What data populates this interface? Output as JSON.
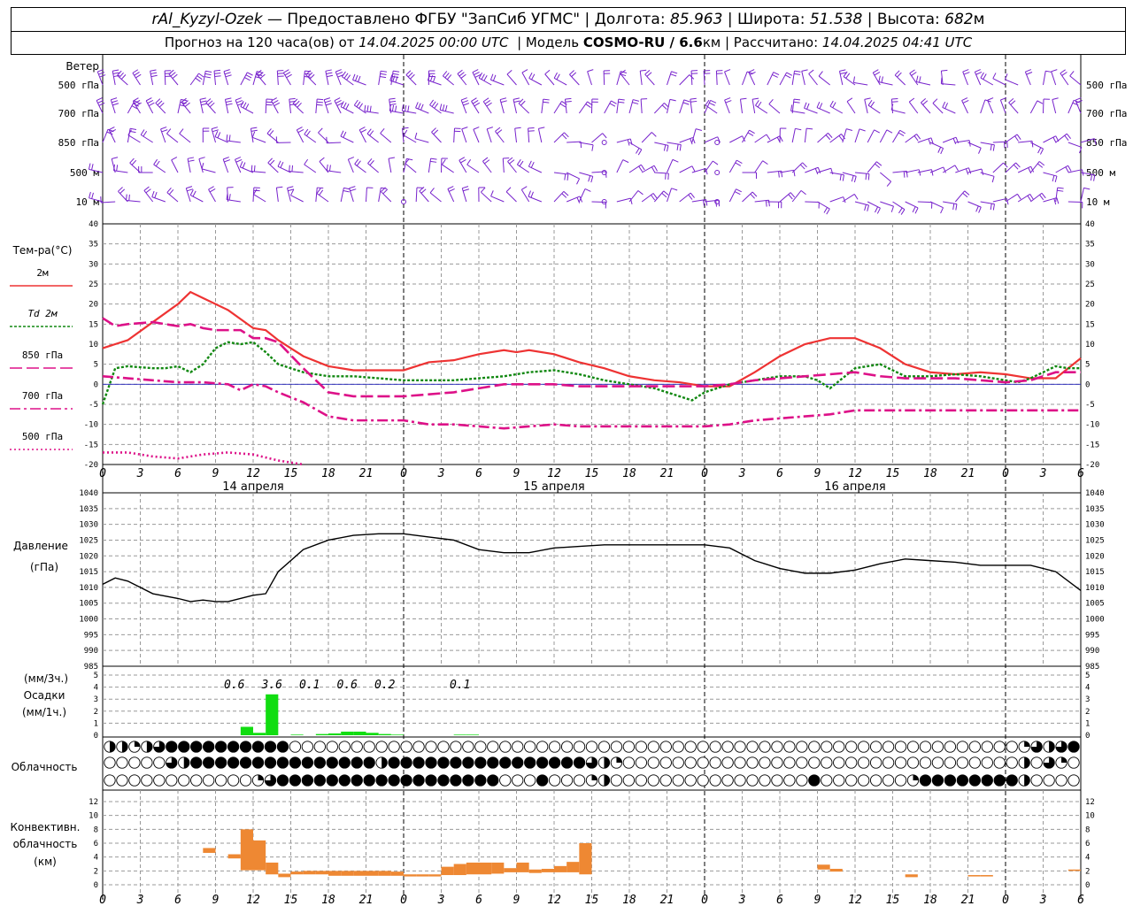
{
  "header": {
    "station": "rAl_Kyzyl-Ozek",
    "provider": "— Предоставлено ФГБУ \"ЗапСиб УГМС\"",
    "lon_label": "| Долгота:",
    "lon": "85.963",
    "lat_label": "| Широта:",
    "lat": "51.538",
    "alt_label": "| Высота:",
    "alt": "682",
    "alt_unit": "м",
    "forecast_label": "Прогноз на 120 часа(ов) от",
    "forecast_start": "14.04.2025 00:00 UTC",
    "model_label": "| Модель",
    "model": "COSMO-RU / 6.6",
    "model_unit": "км",
    "calc_label": "| Рассчитано:",
    "calc_time": "14.04.2025 04:41 UTC"
  },
  "labels": {
    "wind": "Ветер",
    "wind_levels": [
      "500 гПа",
      "700 гПа",
      "850 гПа",
      "500 м",
      "10 м"
    ],
    "temp_title": "Тем-ра(°C)",
    "legend": [
      {
        "label": "2м",
        "color": "#ee3333",
        "dash": ""
      },
      {
        "label": "Td  2м",
        "color": "#118811",
        "dash": "3,2"
      },
      {
        "label": "850 гПа",
        "color": "#dd1188",
        "dash": "14,5"
      },
      {
        "label": "700 гПа",
        "color": "#dd1188",
        "dash": "12,4,3,4"
      },
      {
        "label": "500 гПа",
        "color": "#dd1188",
        "dash": "2,3"
      }
    ],
    "pressure_title": "Давление",
    "pressure_unit": "(гПа)",
    "precip_unit3": "(мм/3ч.)",
    "precip_title": "Осадки",
    "precip_unit1": "(мм/1ч.)",
    "cloud_title": "Облачность",
    "conv_title1": "Конвективн.",
    "conv_title2": "облачность",
    "conv_unit": "(км)",
    "days": [
      "14 апреля",
      "15 апреля",
      "16 апреля"
    ],
    "time_ticks": [
      "0",
      "3",
      "6",
      "9",
      "12",
      "15",
      "18",
      "21",
      "0",
      "3",
      "6",
      "9",
      "12",
      "15",
      "18",
      "21",
      "0",
      "3",
      "6",
      "9",
      "12",
      "15",
      "18",
      "21",
      "0",
      "3",
      "6"
    ]
  },
  "chart_data": [
    {
      "type": "line",
      "title": "Тем-ра(°C)",
      "x_unit": "hours from 14.04.2025 00 UTC",
      "ylim": [
        -20,
        40
      ],
      "series": [
        {
          "name": "2м",
          "color": "#ee3333",
          "x": [
            0,
            2,
            4,
            6,
            7,
            8,
            10,
            12,
            13,
            14,
            15,
            16,
            18,
            20,
            22,
            24,
            26,
            28,
            30,
            32,
            33,
            34,
            36,
            38,
            40,
            42,
            44,
            46,
            48,
            50,
            52,
            54,
            56,
            58,
            60,
            62,
            64,
            66,
            68,
            70,
            72,
            74,
            76,
            78
          ],
          "y": [
            9,
            11,
            15.5,
            20,
            23,
            21.5,
            18.5,
            14,
            13.5,
            11,
            9,
            7,
            4.5,
            3.5,
            3.5,
            3.5,
            5.5,
            6,
            7.5,
            8.5,
            8,
            8.5,
            7.5,
            5.5,
            4,
            2,
            1,
            0.5,
            -0.5,
            -0.5,
            3,
            7,
            10,
            11.5,
            11.5,
            9,
            5,
            3,
            2.5,
            3,
            2.5,
            1.5,
            1.5,
            6.5
          ]
        },
        {
          "name": "Td  2м",
          "color": "#118811",
          "x": [
            0,
            1,
            2,
            4,
            5,
            6,
            7,
            8,
            9,
            10,
            11,
            12,
            13,
            14,
            16,
            18,
            20,
            22,
            24,
            26,
            28,
            30,
            32,
            34,
            36,
            38,
            40,
            42,
            44,
            46,
            47,
            48,
            50,
            52,
            54,
            56,
            57,
            58,
            60,
            62,
            64,
            66,
            68,
            70,
            72,
            73,
            74,
            76,
            77,
            78
          ],
          "y": [
            -5,
            4,
            4.5,
            4,
            4,
            4.5,
            3,
            5,
            9,
            10.5,
            10,
            10.5,
            8,
            5,
            3,
            2,
            2,
            1.5,
            1,
            1,
            1,
            1.5,
            2,
            3,
            3.5,
            2.5,
            1,
            0,
            -1,
            -3,
            -4,
            -2,
            0,
            1,
            2,
            2,
            1,
            -1,
            4,
            5,
            2,
            2,
            2.5,
            2,
            1,
            0.5,
            1.5,
            4.5,
            4,
            4
          ]
        },
        {
          "name": "850 гПа",
          "color": "#dd1188",
          "x": [
            0,
            1,
            2,
            4,
            6,
            7,
            8,
            9,
            10,
            11,
            12,
            13,
            14,
            16,
            18,
            20,
            22,
            24,
            26,
            28,
            30,
            32,
            34,
            36,
            38,
            40,
            42,
            44,
            46,
            48,
            50,
            52,
            54,
            56,
            58,
            60,
            62,
            64,
            66,
            68,
            70,
            72,
            74,
            76,
            78
          ],
          "y": [
            16.5,
            14.5,
            15,
            15.5,
            14.5,
            15,
            14,
            13.5,
            13.5,
            13.5,
            11.5,
            11.5,
            10.5,
            4,
            -2,
            -3,
            -3,
            -3,
            -2.5,
            -2,
            -1,
            0,
            0,
            0,
            -0.5,
            -0.5,
            -0.5,
            -0.5,
            -0.5,
            -0.5,
            0,
            1,
            1.5,
            2,
            2.5,
            3,
            2,
            1.5,
            1.5,
            1.5,
            1,
            0.5,
            1,
            3,
            3
          ]
        },
        {
          "name": "700 гПа",
          "color": "#dd1188",
          "x": [
            0,
            2,
            4,
            6,
            8,
            10,
            11,
            12,
            13,
            14,
            16,
            18,
            20,
            22,
            24,
            26,
            28,
            30,
            32,
            34,
            36,
            38,
            40,
            42,
            44,
            46,
            48,
            50,
            52,
            54,
            56,
            58,
            60,
            62,
            64,
            66,
            68,
            70,
            72,
            74,
            76,
            78
          ],
          "y": [
            2,
            1.5,
            1,
            0.5,
            0.5,
            0,
            -1.5,
            0,
            -0.5,
            -2,
            -4.5,
            -8,
            -9,
            -9,
            -9,
            -10,
            -10,
            -10.5,
            -11,
            -10.5,
            -10,
            -10.5,
            -10.5,
            -10.5,
            -10.5,
            -10.5,
            -10.5,
            -10,
            -9,
            -8.5,
            -8,
            -7.5,
            -6.5,
            -6.5,
            -6.5,
            -6.5,
            -6.5,
            -6.5,
            -6.5,
            -6.5,
            -6.5,
            -6.5
          ]
        },
        {
          "name": "500 гПа",
          "color": "#dd1188",
          "x": [
            0,
            2,
            4,
            6,
            8,
            10,
            12,
            14,
            16
          ],
          "y": [
            -17,
            -17,
            -18,
            -18.5,
            -17.5,
            -17,
            -17.5,
            -19,
            -20
          ]
        }
      ]
    },
    {
      "type": "line",
      "title": "Давление",
      "ylabel": "(гПа)",
      "ylim": [
        985,
        1040
      ],
      "series": [
        {
          "name": "",
          "color": "#000000",
          "x": [
            0,
            1,
            2,
            4,
            6,
            7,
            8,
            9,
            10,
            12,
            13,
            14,
            16,
            18,
            20,
            22,
            24,
            26,
            28,
            30,
            32,
            34,
            36,
            38,
            40,
            42,
            44,
            46,
            48,
            50,
            52,
            54,
            56,
            58,
            60,
            62,
            64,
            66,
            68,
            70,
            72,
            74,
            76,
            78
          ],
          "y": [
            1011,
            1013,
            1012,
            1008,
            1006.5,
            1005.5,
            1006,
            1005.5,
            1005.5,
            1007.5,
            1008,
            1015,
            1022,
            1025,
            1026.5,
            1027,
            1027,
            1026,
            1025,
            1022,
            1021,
            1021,
            1022.5,
            1023,
            1023.5,
            1023.5,
            1023.5,
            1023.5,
            1023.5,
            1022.5,
            1018.5,
            1016,
            1014.5,
            1014.5,
            1015.5,
            1017.5,
            1019,
            1018.5,
            1018,
            1017,
            1017,
            1017,
            1015,
            1009
          ]
        }
      ]
    },
    {
      "type": "bar",
      "title": "Осадки",
      "ylabel": "(мм/1ч.)",
      "ylim": [
        0,
        5
      ],
      "color": "#11dd11",
      "x": [
        11,
        12,
        13,
        15,
        17,
        18,
        19,
        20,
        21,
        22,
        23,
        28,
        29
      ],
      "values": [
        0.7,
        0.2,
        3.4,
        0.05,
        0.1,
        0.15,
        0.3,
        0.3,
        0.2,
        0.1,
        0.05,
        0.05,
        0.05
      ],
      "annotations": [
        {
          "x": 10.5,
          "text": "0.6"
        },
        {
          "x": 13.5,
          "text": "3.6"
        },
        {
          "x": 16.5,
          "text": "0.1"
        },
        {
          "x": 19.5,
          "text": "0.6"
        },
        {
          "x": 22.5,
          "text": "0.2"
        },
        {
          "x": 28.5,
          "text": "0.1"
        }
      ]
    },
    {
      "type": "heatmap",
      "title": "Облачность",
      "note": "per hour 0..78, fraction filled",
      "rows": [
        [
          0.5,
          0.5,
          0.25,
          0.5,
          0.75,
          1,
          1,
          1,
          1,
          1,
          1,
          1,
          1,
          1,
          1,
          0,
          0,
          0,
          0,
          0,
          0,
          0,
          0,
          0,
          0,
          0,
          0,
          0,
          0,
          0,
          0,
          0,
          0,
          0,
          0,
          0,
          0,
          0,
          0,
          0,
          0,
          0,
          0,
          0,
          0,
          0,
          0,
          0,
          0,
          0,
          0,
          0,
          0,
          0,
          0,
          0,
          0,
          0,
          0,
          0,
          0,
          0,
          0,
          0,
          0,
          0,
          0,
          0,
          0,
          0,
          0,
          0,
          0,
          0,
          0.25,
          0.75,
          0.5,
          0.75,
          1
        ],
        [
          0,
          0,
          0,
          0,
          0,
          0.75,
          0.5,
          1,
          1,
          1,
          1,
          1,
          1,
          1,
          1,
          1,
          1,
          1,
          1,
          1,
          1,
          1,
          0.5,
          1,
          1,
          1,
          1,
          1,
          1,
          1,
          1,
          1,
          1,
          1,
          1,
          1,
          1,
          1,
          1,
          0.75,
          0.5,
          0.25,
          0,
          0,
          0,
          0,
          0,
          0,
          0,
          0,
          0,
          0,
          0,
          0,
          0,
          0,
          0,
          0,
          0,
          0,
          0,
          0,
          0,
          0,
          0,
          0,
          0,
          0,
          0,
          0,
          0,
          0,
          0,
          0,
          0.5,
          0,
          0.75,
          0.25,
          0
        ],
        [
          0,
          0,
          0,
          0,
          0,
          0,
          0,
          0,
          0,
          0,
          0,
          0,
          0.25,
          0.75,
          1,
          1,
          1,
          1,
          1,
          1,
          1,
          1,
          1,
          1,
          1,
          1,
          1,
          1,
          1,
          1,
          1,
          1,
          0,
          0,
          0,
          1,
          0,
          0,
          0,
          0.25,
          0.5,
          0,
          0,
          0,
          0,
          0,
          0,
          0,
          0,
          0,
          0,
          0,
          0,
          0,
          0,
          0,
          0,
          1,
          0,
          0,
          0,
          0,
          0,
          0,
          0,
          0.25,
          1,
          1,
          1,
          1,
          1,
          1,
          1,
          1,
          0.5,
          0,
          0,
          0,
          0
        ]
      ]
    },
    {
      "type": "bar",
      "title": "Конвективн. облачность",
      "ylabel": "(км)",
      "ylim": [
        0,
        14
      ],
      "color": "#ee8833",
      "bars": [
        {
          "x": 8.5,
          "lo": 4.6,
          "hi": 5.3
        },
        {
          "x": 10.5,
          "lo": 3.8,
          "hi": 4.4
        },
        {
          "x": 11.5,
          "lo": 2.1,
          "hi": 8
        },
        {
          "x": 12.5,
          "lo": 2.1,
          "hi": 6.4
        },
        {
          "x": 13.5,
          "lo": 1.5,
          "hi": 3.2
        },
        {
          "x": 14.5,
          "lo": 1.1,
          "hi": 1.6
        },
        {
          "x": 15.5,
          "lo": 1.5,
          "hi": 1.9
        },
        {
          "x": 16.5,
          "lo": 1.5,
          "hi": 2
        },
        {
          "x": 17.5,
          "lo": 1.5,
          "hi": 2
        },
        {
          "x": 18.5,
          "lo": 1.3,
          "hi": 2
        },
        {
          "x": 19.5,
          "lo": 1.3,
          "hi": 2
        },
        {
          "x": 20.5,
          "lo": 1.3,
          "hi": 2
        },
        {
          "x": 21.5,
          "lo": 1.3,
          "hi": 2
        },
        {
          "x": 22.5,
          "lo": 1.3,
          "hi": 2
        },
        {
          "x": 23.5,
          "lo": 1.3,
          "hi": 1.9
        },
        {
          "x": 24.5,
          "lo": 1.2,
          "hi": 1.5
        },
        {
          "x": 25.5,
          "lo": 1.2,
          "hi": 1.5
        },
        {
          "x": 26.5,
          "lo": 1.2,
          "hi": 1.5
        },
        {
          "x": 27.5,
          "lo": 1.4,
          "hi": 2.6
        },
        {
          "x": 28.5,
          "lo": 1.4,
          "hi": 3
        },
        {
          "x": 29.5,
          "lo": 1.5,
          "hi": 3.2
        },
        {
          "x": 30.5,
          "lo": 1.5,
          "hi": 3.2
        },
        {
          "x": 31.5,
          "lo": 1.6,
          "hi": 3.2
        },
        {
          "x": 32.5,
          "lo": 1.8,
          "hi": 2.4
        },
        {
          "x": 33.5,
          "lo": 1.8,
          "hi": 3.2
        },
        {
          "x": 34.5,
          "lo": 1.7,
          "hi": 2.2
        },
        {
          "x": 35.5,
          "lo": 1.8,
          "hi": 2.3
        },
        {
          "x": 36.5,
          "lo": 1.8,
          "hi": 2.7
        },
        {
          "x": 37.5,
          "lo": 1.8,
          "hi": 3.3
        },
        {
          "x": 38.5,
          "lo": 1.5,
          "hi": 6
        },
        {
          "x": 57.5,
          "lo": 2.2,
          "hi": 2.9
        },
        {
          "x": 58.5,
          "lo": 1.9,
          "hi": 2.3
        },
        {
          "x": 64.5,
          "lo": 1.1,
          "hi": 1.5
        },
        {
          "x": 69.5,
          "lo": 1.2,
          "hi": 1.4
        },
        {
          "x": 70.5,
          "lo": 1.2,
          "hi": 1.4
        },
        {
          "x": 77.5,
          "lo": 2,
          "hi": 2.2
        }
      ]
    }
  ],
  "ticks": {
    "temp": [
      "40",
      "35",
      "30",
      "25",
      "20",
      "15",
      "10",
      "5",
      "0",
      "-5",
      "-10",
      "-15",
      "-20"
    ],
    "pressure": [
      "1040",
      "1035",
      "1030",
      "1025",
      "1020",
      "1015",
      "1010",
      "1005",
      "1000",
      "995",
      "990",
      "985"
    ],
    "precip": [
      "5",
      "4",
      "3",
      "2",
      "1",
      "0"
    ],
    "conv": [
      "12",
      "10",
      "8",
      "6",
      "4",
      "2",
      "0"
    ]
  },
  "colors": {
    "wind_barb": "#7722cc",
    "grid": "#999999",
    "zero_line": "#2222bb"
  }
}
